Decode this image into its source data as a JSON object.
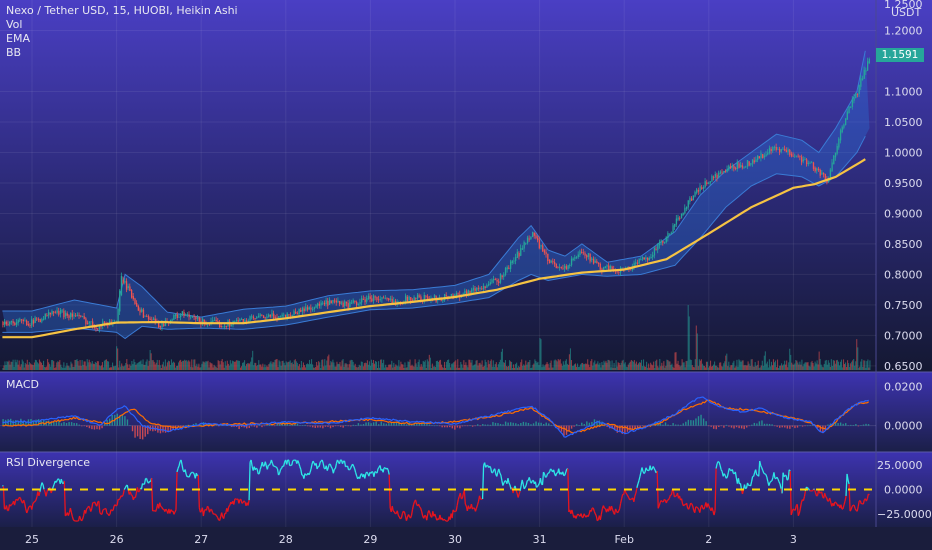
{
  "header": {
    "title": "Nexo / Tether USD, 15, HUOBI, Heikin Ashi",
    "indicators": [
      "Vol",
      "EMA",
      "BB"
    ]
  },
  "axis": {
    "currency": "USDT",
    "top_label": "1.2500",
    "price_ticks": [
      "1.2000",
      "1.1000",
      "1.0500",
      "1.0000",
      "0.9500",
      "0.9000",
      "0.8500",
      "0.8000",
      "0.7500",
      "0.7000",
      "0.6500"
    ],
    "current_price": "1.1591",
    "macd_ticks": [
      "0.0200",
      "0.0000"
    ],
    "rsi_ticks": [
      "25.0000",
      "0.0000",
      "−25.0000"
    ],
    "dates": [
      "25",
      "26",
      "27",
      "28",
      "29",
      "30",
      "31",
      "Feb",
      "2",
      "3"
    ]
  },
  "panes": {
    "macd_title": "MACD",
    "rsi_title": "RSI Divergence"
  },
  "colors": {
    "up": "#26a69a",
    "down": "#ef5350",
    "ema": "#f6c343",
    "band_fill": "#2a6fd6",
    "band_line": "#3a7bd5",
    "macd_line": "#2962ff",
    "signal_line": "#ff6d00",
    "rsi_high": "#2ee6e6",
    "rsi_low": "#e8141e",
    "rsi_mid": "#ffd700"
  },
  "chart_data": {
    "type": "line",
    "x_dates": [
      "25",
      "26",
      "27",
      "28",
      "29",
      "30",
      "31",
      "Feb",
      "2",
      "3"
    ],
    "price": {
      "ylim": [
        0.64,
        1.25
      ],
      "close_path": [
        [
          0.0,
          0.722
        ],
        [
          0.25,
          0.738
        ],
        [
          0.5,
          0.733
        ],
        [
          0.75,
          0.715
        ],
        [
          1.0,
          0.725
        ],
        [
          1.05,
          0.795
        ],
        [
          1.15,
          0.77
        ],
        [
          1.3,
          0.735
        ],
        [
          1.5,
          0.717
        ],
        [
          1.75,
          0.735
        ],
        [
          2.0,
          0.722
        ],
        [
          2.25,
          0.718
        ],
        [
          2.5,
          0.725
        ],
        [
          2.75,
          0.73
        ],
        [
          3.0,
          0.733
        ],
        [
          3.25,
          0.745
        ],
        [
          3.5,
          0.753
        ],
        [
          3.75,
          0.75
        ],
        [
          4.0,
          0.762
        ],
        [
          4.25,
          0.755
        ],
        [
          4.5,
          0.762
        ],
        [
          4.75,
          0.76
        ],
        [
          5.0,
          0.766
        ],
        [
          5.25,
          0.776
        ],
        [
          5.5,
          0.79
        ],
        [
          5.75,
          0.835
        ],
        [
          5.9,
          0.87
        ],
        [
          6.1,
          0.82
        ],
        [
          6.3,
          0.81
        ],
        [
          6.5,
          0.84
        ],
        [
          6.7,
          0.81
        ],
        [
          7.0,
          0.807
        ],
        [
          7.25,
          0.826
        ],
        [
          7.5,
          0.86
        ],
        [
          7.75,
          0.92
        ],
        [
          8.0,
          0.955
        ],
        [
          8.25,
          0.975
        ],
        [
          8.5,
          0.985
        ],
        [
          8.75,
          1.005
        ],
        [
          9.0,
          0.998
        ],
        [
          9.25,
          0.975
        ],
        [
          9.4,
          0.95
        ],
        [
          9.55,
          1.04
        ],
        [
          9.75,
          1.1
        ],
        [
          9.9,
          1.16
        ]
      ],
      "ema_path": [
        [
          0.0,
          0.697
        ],
        [
          0.5,
          0.71
        ],
        [
          1.0,
          0.721
        ],
        [
          1.5,
          0.722
        ],
        [
          2.0,
          0.72
        ],
        [
          2.5,
          0.72
        ],
        [
          3.0,
          0.728
        ],
        [
          3.5,
          0.738
        ],
        [
          4.0,
          0.748
        ],
        [
          4.5,
          0.755
        ],
        [
          5.0,
          0.763
        ],
        [
          5.5,
          0.775
        ],
        [
          6.0,
          0.793
        ],
        [
          6.5,
          0.803
        ],
        [
          7.0,
          0.808
        ],
        [
          7.5,
          0.825
        ],
        [
          8.0,
          0.867
        ],
        [
          8.5,
          0.91
        ],
        [
          9.0,
          0.942
        ],
        [
          9.25,
          0.948
        ],
        [
          9.5,
          0.96
        ],
        [
          9.9,
          0.993
        ]
      ],
      "bb_upper_path": [
        [
          0.0,
          0.74
        ],
        [
          0.5,
          0.758
        ],
        [
          1.0,
          0.745
        ],
        [
          1.1,
          0.8
        ],
        [
          1.3,
          0.78
        ],
        [
          1.6,
          0.738
        ],
        [
          2.0,
          0.73
        ],
        [
          2.5,
          0.743
        ],
        [
          3.0,
          0.748
        ],
        [
          3.5,
          0.765
        ],
        [
          4.0,
          0.773
        ],
        [
          4.5,
          0.775
        ],
        [
          5.0,
          0.782
        ],
        [
          5.4,
          0.8
        ],
        [
          5.75,
          0.86
        ],
        [
          5.9,
          0.88
        ],
        [
          6.1,
          0.84
        ],
        [
          6.3,
          0.83
        ],
        [
          6.5,
          0.85
        ],
        [
          6.8,
          0.82
        ],
        [
          7.2,
          0.83
        ],
        [
          7.6,
          0.87
        ],
        [
          7.9,
          0.93
        ],
        [
          8.2,
          0.97
        ],
        [
          8.5,
          1.0
        ],
        [
          8.8,
          1.03
        ],
        [
          9.1,
          1.02
        ],
        [
          9.3,
          1.0
        ],
        [
          9.5,
          1.04
        ],
        [
          9.75,
          1.1
        ],
        [
          9.9,
          1.2
        ]
      ],
      "bb_lower_path": [
        [
          0.0,
          0.705
        ],
        [
          0.5,
          0.712
        ],
        [
          1.0,
          0.705
        ],
        [
          1.1,
          0.695
        ],
        [
          1.3,
          0.715
        ],
        [
          1.6,
          0.71
        ],
        [
          2.0,
          0.712
        ],
        [
          2.5,
          0.71
        ],
        [
          3.0,
          0.717
        ],
        [
          3.5,
          0.73
        ],
        [
          4.0,
          0.742
        ],
        [
          4.5,
          0.745
        ],
        [
          5.0,
          0.753
        ],
        [
          5.4,
          0.762
        ],
        [
          5.75,
          0.79
        ],
        [
          5.9,
          0.8
        ],
        [
          6.1,
          0.79
        ],
        [
          6.3,
          0.795
        ],
        [
          6.5,
          0.8
        ],
        [
          6.8,
          0.797
        ],
        [
          7.2,
          0.8
        ],
        [
          7.6,
          0.815
        ],
        [
          7.9,
          0.86
        ],
        [
          8.2,
          0.91
        ],
        [
          8.5,
          0.945
        ],
        [
          8.8,
          0.965
        ],
        [
          9.1,
          0.96
        ],
        [
          9.3,
          0.945
        ],
        [
          9.5,
          0.96
        ],
        [
          9.75,
          1.0
        ],
        [
          9.9,
          1.04
        ]
      ]
    },
    "volume": {
      "spikes": [
        [
          1.0,
          0.5
        ],
        [
          1.4,
          0.3
        ],
        [
          2.6,
          0.35
        ],
        [
          3.5,
          0.25
        ],
        [
          4.7,
          0.3
        ],
        [
          5.55,
          0.4
        ],
        [
          6.0,
          0.7
        ],
        [
          6.35,
          0.5
        ],
        [
          7.6,
          0.3
        ],
        [
          7.75,
          2.0
        ],
        [
          7.85,
          1.0
        ],
        [
          8.2,
          0.5
        ],
        [
          8.65,
          0.4
        ],
        [
          8.95,
          0.5
        ],
        [
          9.3,
          0.3
        ],
        [
          9.75,
          0.6
        ]
      ]
    },
    "macd": {
      "ylim": [
        -0.012,
        0.026
      ],
      "macd_path": [
        [
          0.0,
          0.002
        ],
        [
          0.5,
          0.005
        ],
        [
          0.8,
          0.0
        ],
        [
          1.0,
          0.008
        ],
        [
          1.1,
          0.01
        ],
        [
          1.3,
          0.0
        ],
        [
          1.6,
          -0.003
        ],
        [
          2.0,
          0.001
        ],
        [
          2.5,
          0.0
        ],
        [
          3.0,
          0.002
        ],
        [
          3.5,
          0.001
        ],
        [
          4.0,
          0.004
        ],
        [
          4.5,
          0.002
        ],
        [
          5.0,
          0.001
        ],
        [
          5.5,
          0.006
        ],
        [
          5.9,
          0.01
        ],
        [
          6.1,
          0.004
        ],
        [
          6.3,
          -0.006
        ],
        [
          6.7,
          0.002
        ],
        [
          7.0,
          -0.004
        ],
        [
          7.3,
          0.0
        ],
        [
          7.6,
          0.006
        ],
        [
          7.9,
          0.015
        ],
        [
          8.1,
          0.01
        ],
        [
          8.4,
          0.007
        ],
        [
          8.6,
          0.009
        ],
        [
          8.9,
          0.004
        ],
        [
          9.2,
          0.002
        ],
        [
          9.35,
          -0.004
        ],
        [
          9.5,
          0.003
        ],
        [
          9.7,
          0.01
        ],
        [
          9.85,
          0.013
        ]
      ],
      "signal_path": [
        [
          0.0,
          0.0
        ],
        [
          0.5,
          0.004
        ],
        [
          0.9,
          0.001
        ],
        [
          1.2,
          0.009
        ],
        [
          1.4,
          0.001
        ],
        [
          1.7,
          -0.001
        ],
        [
          2.0,
          0.0
        ],
        [
          2.5,
          0.001
        ],
        [
          3.0,
          0.001
        ],
        [
          3.5,
          0.002
        ],
        [
          4.0,
          0.003
        ],
        [
          4.5,
          0.001
        ],
        [
          5.0,
          0.002
        ],
        [
          5.5,
          0.005
        ],
        [
          5.9,
          0.009
        ],
        [
          6.2,
          0.0
        ],
        [
          6.4,
          -0.004
        ],
        [
          6.8,
          0.001
        ],
        [
          7.1,
          -0.002
        ],
        [
          7.4,
          0.001
        ],
        [
          7.7,
          0.008
        ],
        [
          8.0,
          0.013
        ],
        [
          8.2,
          0.009
        ],
        [
          8.5,
          0.008
        ],
        [
          8.8,
          0.006
        ],
        [
          9.1,
          0.003
        ],
        [
          9.4,
          -0.002
        ],
        [
          9.6,
          0.006
        ],
        [
          9.75,
          0.011
        ],
        [
          9.85,
          0.012
        ]
      ]
    },
    "rsi": {
      "ylim": [
        -35,
        35
      ],
      "mid_level": 0,
      "ticks": [
        25,
        0,
        -25
      ]
    }
  }
}
